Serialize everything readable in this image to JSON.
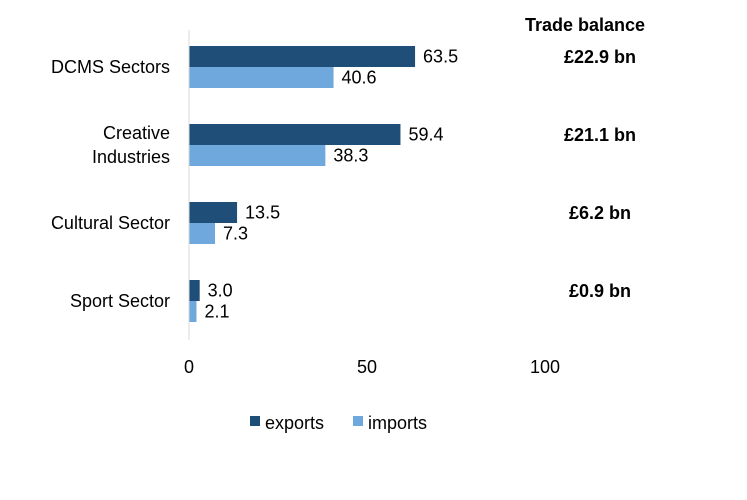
{
  "chart_data": {
    "type": "bar",
    "orientation": "horizontal",
    "categories": [
      [
        "DCMS Sectors"
      ],
      [
        "Creative",
        "Industries"
      ],
      [
        "Cultural Sector"
      ],
      [
        "Sport Sector"
      ]
    ],
    "series": [
      {
        "name": "exports",
        "color": "#1f4e79",
        "values": [
          63.5,
          59.4,
          13.5,
          3.0
        ]
      },
      {
        "name": "imports",
        "color": "#6fa8dc",
        "values": [
          40.6,
          38.3,
          7.3,
          2.1
        ]
      }
    ],
    "value_labels": {
      "exports": [
        "63.5",
        "59.4",
        "13.5",
        "3.0"
      ],
      "imports": [
        "40.6",
        "38.3",
        "7.3",
        "2.1"
      ]
    },
    "xlim": [
      0,
      100
    ],
    "xticks": [
      0,
      50,
      100
    ],
    "xtick_labels": [
      "0",
      "50",
      "100"
    ],
    "grid": false,
    "legend": {
      "position": "bottom",
      "entries": [
        "exports",
        "imports"
      ]
    },
    "trade_balance": {
      "title": "Trade balance",
      "values": [
        "£22.9 bn",
        "£21.1 bn",
        "£6.2 bn",
        "£0.9 bn"
      ]
    }
  }
}
